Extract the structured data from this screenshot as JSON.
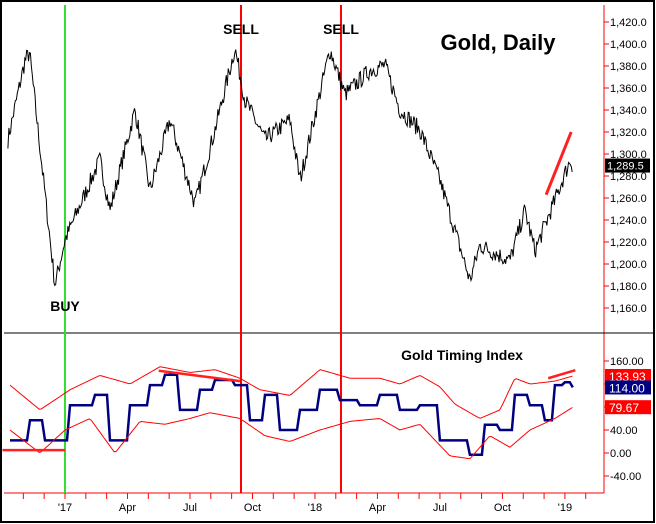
{
  "chart_data": [
    {
      "type": "line",
      "title": "Gold, Daily",
      "x_unit": "months since Oct 2016",
      "x_tick_labels": [
        {
          "m": 3,
          "label": "'17"
        },
        {
          "m": 6,
          "label": "Apr"
        },
        {
          "m": 9,
          "label": "Jul"
        },
        {
          "m": 12,
          "label": "Oct"
        },
        {
          "m": 15,
          "label": "'18"
        },
        {
          "m": 18,
          "label": "Apr"
        },
        {
          "m": 21,
          "label": "Jul"
        },
        {
          "m": 24,
          "label": "Oct"
        },
        {
          "m": 27,
          "label": "'19"
        }
      ],
      "y_ticks": [
        "1,160.0",
        "1,180.0",
        "1,200.0",
        "1,220.0",
        "1,240.0",
        "1,260.0",
        "1,280.0",
        "1,300.0",
        "1,320.0",
        "1,340.0",
        "1,360.0",
        "1,380.0",
        "1,400.0",
        "1,420.0"
      ],
      "ylim": [
        1140,
        1430
      ],
      "last_value_label": "1,289.5",
      "last_value": 1289.5,
      "series": [
        {
          "name": "Gold",
          "points": [
            [
              0.26,
              1313
            ],
            [
              1.08,
              1385
            ],
            [
              1.3,
              1392
            ],
            [
              2.52,
              1181
            ],
            [
              3.0,
              1222
            ],
            [
              4.68,
              1295
            ],
            [
              5.16,
              1249
            ],
            [
              6.36,
              1340
            ],
            [
              7.08,
              1267
            ],
            [
              8.04,
              1331
            ],
            [
              9.24,
              1254
            ],
            [
              10.2,
              1322
            ],
            [
              11.16,
              1396
            ],
            [
              11.64,
              1349
            ],
            [
              12.6,
              1313
            ],
            [
              13.8,
              1331
            ],
            [
              14.28,
              1276
            ],
            [
              15.72,
              1395
            ],
            [
              16.44,
              1354
            ],
            [
              17.64,
              1376
            ],
            [
              18.36,
              1381
            ],
            [
              19.08,
              1340
            ],
            [
              20.04,
              1322
            ],
            [
              21.0,
              1276
            ],
            [
              22.44,
              1185
            ],
            [
              22.92,
              1217
            ],
            [
              24.36,
              1203
            ],
            [
              25.08,
              1249
            ],
            [
              25.56,
              1212
            ],
            [
              26.52,
              1258
            ],
            [
              27.24,
              1294
            ],
            [
              27.38,
              1289.5
            ]
          ]
        }
      ],
      "signals": [
        {
          "m": 3.0,
          "label": "BUY",
          "color": "#33dd33"
        },
        {
          "m": 11.45,
          "label": "SELL",
          "color": "#ff0000"
        },
        {
          "m": 16.25,
          "label": "SELL",
          "color": "#ff0000"
        }
      ],
      "trendline": {
        "from": [
          26.1,
          1263
        ],
        "to": [
          27.3,
          1320
        ],
        "color": "#ff2020"
      }
    },
    {
      "type": "line",
      "title": "Gold Timing Index",
      "y_ticks": [
        "-40.00",
        "0.00",
        "40.00",
        "160.00"
      ],
      "ylim": [
        -70,
        185
      ],
      "value_labels": [
        {
          "text": "133.93",
          "value": 133.93,
          "bg": "#ff0000",
          "fg": "#ffffff"
        },
        {
          "text": "114.00",
          "value": 114.0,
          "bg": "#000080",
          "fg": "#ffffff"
        },
        {
          "text": "79.67",
          "value": 79.67,
          "bg": "#ff0000",
          "fg": "#ffffff"
        }
      ],
      "series": [
        {
          "name": "Timing Index",
          "color": "#000080",
          "points": [
            [
              0.36,
              22
            ],
            [
              1.32,
              57
            ],
            [
              2.04,
              22
            ],
            [
              3.24,
              83
            ],
            [
              4.44,
              101
            ],
            [
              5.16,
              22
            ],
            [
              6.12,
              83
            ],
            [
              7.08,
              118
            ],
            [
              7.8,
              136
            ],
            [
              8.52,
              75
            ],
            [
              9.48,
              110
            ],
            [
              10.2,
              127
            ],
            [
              11.16,
              118
            ],
            [
              11.88,
              57
            ],
            [
              12.6,
              101
            ],
            [
              13.32,
              40
            ],
            [
              14.28,
              75
            ],
            [
              15.24,
              110
            ],
            [
              16.2,
              92
            ],
            [
              17.16,
              83
            ],
            [
              18.12,
              101
            ],
            [
              19.08,
              75
            ],
            [
              20.04,
              83
            ],
            [
              21.0,
              22
            ],
            [
              22.44,
              -3
            ],
            [
              23.16,
              49
            ],
            [
              23.88,
              40
            ],
            [
              24.6,
              101
            ],
            [
              25.32,
              83
            ],
            [
              26.04,
              57
            ],
            [
              26.52,
              118
            ],
            [
              27.0,
              123
            ],
            [
              27.38,
              114
            ]
          ]
        },
        {
          "name": "Upper Band",
          "color": "#ff0000",
          "points": [
            [
              0.36,
              118
            ],
            [
              1.8,
              75
            ],
            [
              3.24,
              110
            ],
            [
              4.68,
              135
            ],
            [
              6.12,
              120
            ],
            [
              7.56,
              150
            ],
            [
              9.0,
              140
            ],
            [
              10.2,
              145
            ],
            [
              11.4,
              130
            ],
            [
              12.36,
              110
            ],
            [
              13.8,
              100
            ],
            [
              15.24,
              145
            ],
            [
              16.68,
              130
            ],
            [
              18.12,
              130
            ],
            [
              19.08,
              120
            ],
            [
              20.04,
              135
            ],
            [
              21.0,
              115
            ],
            [
              21.72,
              85
            ],
            [
              22.92,
              60
            ],
            [
              23.88,
              75
            ],
            [
              24.6,
              130
            ],
            [
              25.32,
              120
            ],
            [
              26.52,
              125
            ],
            [
              27.38,
              133.93
            ]
          ]
        },
        {
          "name": "Lower Band",
          "color": "#ff0000",
          "points": [
            [
              0.36,
              40
            ],
            [
              1.8,
              0
            ],
            [
              3.0,
              40
            ],
            [
              4.2,
              60
            ],
            [
              5.4,
              0
            ],
            [
              6.6,
              55
            ],
            [
              7.8,
              50
            ],
            [
              9.0,
              60
            ],
            [
              9.96,
              70
            ],
            [
              11.4,
              60
            ],
            [
              12.6,
              30
            ],
            [
              13.8,
              20
            ],
            [
              15.24,
              40
            ],
            [
              16.68,
              55
            ],
            [
              18.12,
              60
            ],
            [
              19.08,
              40
            ],
            [
              20.04,
              50
            ],
            [
              21.48,
              -5
            ],
            [
              22.44,
              -10
            ],
            [
              23.4,
              30
            ],
            [
              24.36,
              10
            ],
            [
              25.32,
              40
            ],
            [
              26.52,
              60
            ],
            [
              27.38,
              79.67
            ]
          ]
        }
      ],
      "trendlines": [
        {
          "from": [
            0.0,
            5
          ],
          "to": [
            3.0,
            5
          ],
          "color": "#ff2020"
        },
        {
          "from": [
            7.5,
            143
          ],
          "to": [
            11.4,
            125
          ],
          "color": "#ff2020"
        },
        {
          "from": [
            26.2,
            130
          ],
          "to": [
            27.5,
            144
          ],
          "color": "#ff2020"
        }
      ]
    }
  ]
}
